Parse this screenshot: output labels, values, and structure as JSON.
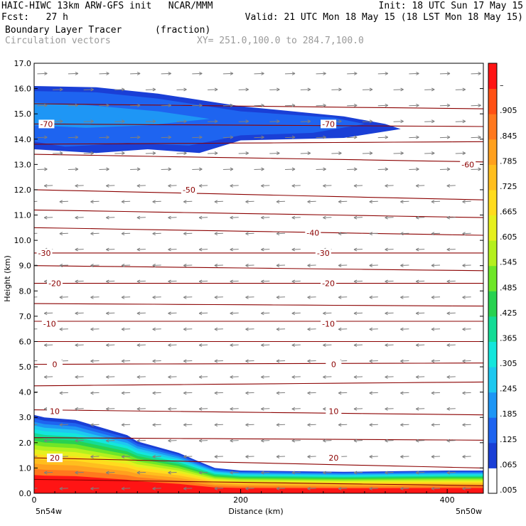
{
  "header": {
    "line1_left": "HAIC-HIWC 13km ARW-GFS init   NCAR/MMM",
    "line1_right": "Init: 18 UTC Sun 17 May 15",
    "line2_left": "Fcst:   27 h",
    "line2_right": "Valid: 21 UTC Mon 18 May 15 (18 LST Mon 18 May 15)",
    "line3_left": "Boundary Layer Tracer",
    "line3_units": "(fraction)",
    "line4_left": "Circulation vectors",
    "line4_right": "XY= 251.0,100.0 to 284.7,100.0"
  },
  "colors": {
    "contour_line": "#8b0000",
    "vector": "#7f7f7f",
    "colorbar": [
      "#ffffff",
      "#1a3fd6",
      "#1e64f0",
      "#1e96f5",
      "#1ec8f0",
      "#14e6dc",
      "#14dc96",
      "#28d250",
      "#6ee628",
      "#b4f01e",
      "#e6f01e",
      "#ffdc1e",
      "#ffbe1e",
      "#ffa01e",
      "#ff781e",
      "#ff5014",
      "#ff1414"
    ]
  },
  "chart_data": {
    "type": "heatmap",
    "title": "Boundary Layer Tracer",
    "units": "(fraction)",
    "overlay": "Circulation vectors",
    "xlabel": "Distance (km)",
    "ylabel": "Height (km)",
    "xlim": [
      0,
      435
    ],
    "ylim": [
      0,
      17
    ],
    "x_ticks": [
      {
        "value": 0,
        "label": "0"
      },
      {
        "value": 200,
        "label": "200"
      },
      {
        "value": 400,
        "label": "400"
      }
    ],
    "x_end_labels": {
      "left": "5n54w",
      "right": "5n50w"
    },
    "y_ticks": [
      {
        "value": 0,
        "label": "0.0"
      },
      {
        "value": 1,
        "label": "1.0"
      },
      {
        "value": 2,
        "label": "2.0"
      },
      {
        "value": 3,
        "label": "3.0"
      },
      {
        "value": 4,
        "label": "4.0"
      },
      {
        "value": 5,
        "label": "5.0"
      },
      {
        "value": 6,
        "label": "6.0"
      },
      {
        "value": 7,
        "label": "7.0"
      },
      {
        "value": 8,
        "label": "8.0"
      },
      {
        "value": 9,
        "label": "9.0"
      },
      {
        "value": 10,
        "label": "10.0"
      },
      {
        "value": 11,
        "label": "11.0"
      },
      {
        "value": 12,
        "label": "12.0"
      },
      {
        "value": 13,
        "label": "13.0"
      },
      {
        "value": 14,
        "label": "14.0"
      },
      {
        "value": 15,
        "label": "15.0"
      },
      {
        "value": 16,
        "label": "16.0"
      },
      {
        "value": 17,
        "label": "17.0"
      }
    ],
    "colorbar_labels": [
      ".005",
      ".065",
      ".125",
      ".185",
      ".245",
      ".305",
      ".365",
      ".425",
      ".485",
      ".545",
      ".605",
      ".665",
      ".725",
      ".785",
      ".845",
      ".905",
      "–"
    ],
    "contour_labels": [
      {
        "x": 12,
        "y": 14.6,
        "label": "-70"
      },
      {
        "x": 285,
        "y": 14.6,
        "label": "-70"
      },
      {
        "x": 420,
        "y": 13.0,
        "label": "-60"
      },
      {
        "x": 150,
        "y": 12.0,
        "label": "-50"
      },
      {
        "x": 270,
        "y": 10.3,
        "label": "-40"
      },
      {
        "x": 10,
        "y": 9.5,
        "label": "-30"
      },
      {
        "x": 280,
        "y": 9.5,
        "label": "-30"
      },
      {
        "x": 20,
        "y": 8.3,
        "label": "-20"
      },
      {
        "x": 285,
        "y": 8.3,
        "label": "-20"
      },
      {
        "x": 15,
        "y": 6.7,
        "label": "-10"
      },
      {
        "x": 285,
        "y": 6.7,
        "label": "-10"
      },
      {
        "x": 20,
        "y": 5.1,
        "label": "0"
      },
      {
        "x": 290,
        "y": 5.1,
        "label": "0"
      },
      {
        "x": 20,
        "y": 3.25,
        "label": "10"
      },
      {
        "x": 290,
        "y": 3.25,
        "label": "10"
      },
      {
        "x": 20,
        "y": 1.4,
        "label": "20"
      },
      {
        "x": 290,
        "y": 1.4,
        "label": "20"
      }
    ],
    "contours": [
      {
        "level": -70,
        "y0": 13.8,
        "y1": 13.9
      },
      {
        "level": -70,
        "y0": 14.6,
        "y1": 14.5
      },
      {
        "level": -60,
        "y0": 15.4,
        "y1": 15.2
      },
      {
        "level": -60,
        "y0": 13.4,
        "y1": 13.1
      },
      {
        "level": -50,
        "y0": 12.0,
        "y1": 11.6
      },
      {
        "level": -50,
        "y0": 11.2,
        "y1": 10.9
      },
      {
        "level": -40,
        "y0": 10.5,
        "y1": 10.2
      },
      {
        "level": -30,
        "y0": 9.5,
        "y1": 9.5
      },
      {
        "level": -30,
        "y0": 9.0,
        "y1": 8.8
      },
      {
        "level": -20,
        "y0": 8.3,
        "y1": 8.3
      },
      {
        "level": -20,
        "y0": 7.5,
        "y1": 7.4
      },
      {
        "level": -10,
        "y0": 6.8,
        "y1": 6.8
      },
      {
        "level": -10,
        "y0": 6.0,
        "y1": 6.0
      },
      {
        "level": 0,
        "y0": 5.1,
        "y1": 5.15
      },
      {
        "level": 0,
        "y0": 4.25,
        "y1": 4.4
      },
      {
        "level": 10,
        "y0": 3.3,
        "y1": 3.1
      },
      {
        "level": 10,
        "y0": 2.2,
        "y1": 2.1
      },
      {
        "level": 20,
        "y0": 1.4,
        "y1": 1.0
      },
      {
        "level": 20,
        "y0": 0.55,
        "y1": 0.3
      }
    ],
    "upper_tracer_layers": [
      {
        "value": 0.035,
        "top": [
          [
            0,
            16.1
          ],
          [
            60,
            16.05
          ],
          [
            120,
            15.8
          ],
          [
            200,
            15.3
          ],
          [
            300,
            14.9
          ],
          [
            340,
            14.6
          ],
          [
            355,
            14.4
          ]
        ],
        "bottom": [
          [
            355,
            14.4
          ],
          [
            300,
            14.05
          ],
          [
            200,
            13.95
          ],
          [
            160,
            13.45
          ],
          [
            110,
            13.6
          ],
          [
            60,
            13.45
          ],
          [
            0,
            13.6
          ]
        ]
      },
      {
        "value": 0.065,
        "top": [
          [
            0,
            15.9
          ],
          [
            60,
            15.85
          ],
          [
            120,
            15.6
          ],
          [
            200,
            15.1
          ],
          [
            290,
            14.85
          ],
          [
            320,
            14.6
          ]
        ],
        "bottom": [
          [
            320,
            14.6
          ],
          [
            270,
            14.25
          ],
          [
            200,
            14.15
          ],
          [
            150,
            13.75
          ],
          [
            90,
            13.85
          ],
          [
            30,
            13.7
          ],
          [
            0,
            13.9
          ]
        ]
      },
      {
        "value": 0.095,
        "top": [
          [
            0,
            15.7
          ],
          [
            60,
            15.6
          ],
          [
            140,
            15.3
          ],
          [
            200,
            14.95
          ],
          [
            250,
            14.7
          ]
        ],
        "bottom": [
          [
            250,
            14.7
          ],
          [
            190,
            14.4
          ],
          [
            130,
            14.25
          ],
          [
            70,
            14.15
          ],
          [
            0,
            14.25
          ]
        ]
      },
      {
        "value": 0.125,
        "top": [
          [
            0,
            15.45
          ],
          [
            50,
            15.35
          ],
          [
            120,
            15.1
          ],
          [
            170,
            14.8
          ]
        ],
        "bottom": [
          [
            170,
            14.8
          ],
          [
            110,
            14.55
          ],
          [
            50,
            14.45
          ],
          [
            0,
            14.55
          ]
        ]
      },
      {
        "value": 0.155,
        "top": [
          [
            0,
            15.2
          ],
          [
            40,
            15.1
          ],
          [
            90,
            14.9
          ]
        ],
        "bottom": [
          [
            90,
            14.9
          ],
          [
            40,
            14.75
          ],
          [
            0,
            14.8
          ]
        ]
      }
    ],
    "surface_tracer": [
      {
        "x": 0,
        "top": 3.1
      },
      {
        "x": 10,
        "top": 3.0
      },
      {
        "x": 40,
        "top": 2.9
      },
      {
        "x": 90,
        "top": 2.3
      },
      {
        "x": 100,
        "top": 2.05
      },
      {
        "x": 140,
        "top": 1.6
      },
      {
        "x": 160,
        "top": 1.25
      },
      {
        "x": 175,
        "top": 1.0
      },
      {
        "x": 200,
        "top": 0.9
      },
      {
        "x": 300,
        "top": 0.85
      },
      {
        "x": 400,
        "top": 0.9
      },
      {
        "x": 435,
        "top": 0.9
      }
    ]
  }
}
